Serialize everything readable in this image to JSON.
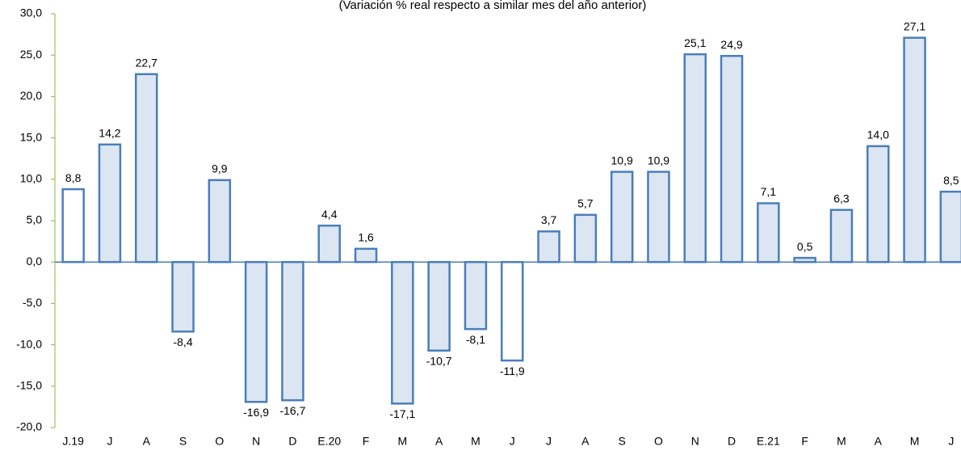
{
  "chart_data": {
    "type": "bar",
    "subtitle": "(Variación % real respecto a similar mes del año anterior)",
    "categories": [
      "J.19",
      "J",
      "A",
      "S",
      "O",
      "N",
      "D",
      "E.20",
      "F",
      "M",
      "A",
      "M",
      "J",
      "J",
      "A",
      "S",
      "O",
      "N",
      "D",
      "E.21",
      "F",
      "M",
      "A",
      "M",
      "J"
    ],
    "values": [
      8.8,
      14.2,
      22.7,
      -8.4,
      9.9,
      -16.9,
      -16.7,
      4.4,
      1.6,
      -17.1,
      -10.7,
      -8.1,
      -11.9,
      3.7,
      5.7,
      10.9,
      10.9,
      25.1,
      24.9,
      7.1,
      0.5,
      6.3,
      14.0,
      27.1,
      8.5
    ],
    "value_labels": [
      "8,8",
      "14,2",
      "22,7",
      "-8,4",
      "9,9",
      "-16,9",
      "-16,7",
      "4,4",
      "1,6",
      "-17,1",
      "-10,7",
      "-8,1",
      "-11,9",
      "3,7",
      "5,7",
      "10,9",
      "10,9",
      "25,1",
      "24,9",
      "7,1",
      "0,5",
      "6,3",
      "14,0",
      "27,1",
      "8,5"
    ],
    "fill_colors": [
      "#ffffff",
      "#dce6f2",
      "#dce6f2",
      "#dce6f2",
      "#dce6f2",
      "#dce6f2",
      "#dce6f2",
      "#dce6f2",
      "#dce6f2",
      "#dce6f2",
      "#dce6f2",
      "#dce6f2",
      "#ffffff",
      "#dce6f2",
      "#dce6f2",
      "#dce6f2",
      "#dce6f2",
      "#dce6f2",
      "#dce6f2",
      "#dce6f2",
      "#dce6f2",
      "#dce6f2",
      "#dce6f2",
      "#dce6f2",
      "#dce6f2"
    ],
    "color": "#4a7ebb",
    "ylim": [
      -20,
      30
    ],
    "yticks": [
      {
        "value": -20,
        "label": "-20,0"
      },
      {
        "value": -15,
        "label": "-15,0"
      },
      {
        "value": -10,
        "label": "-10,0"
      },
      {
        "value": -5,
        "label": "-5,0"
      },
      {
        "value": 0,
        "label": "0,0"
      },
      {
        "value": 5,
        "label": "5,0"
      },
      {
        "value": 10,
        "label": "10,0"
      },
      {
        "value": 15,
        "label": "15,0"
      },
      {
        "value": 20,
        "label": "20,0"
      },
      {
        "value": 25,
        "label": "25,0"
      },
      {
        "value": 30,
        "label": "30,0"
      }
    ],
    "grid": false
  }
}
